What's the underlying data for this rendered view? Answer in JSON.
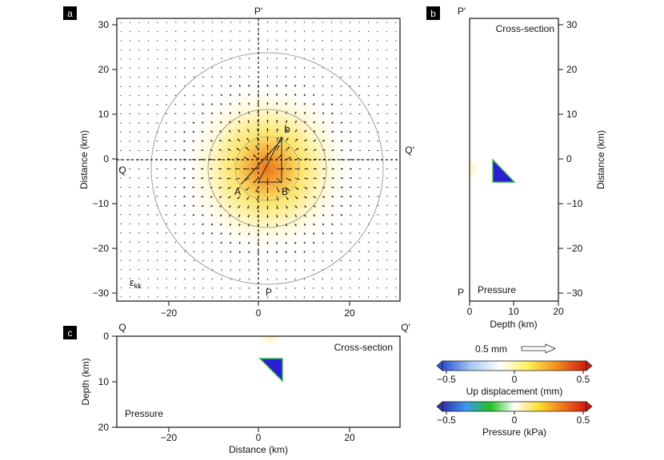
{
  "chart_data": [
    {
      "panel": "a",
      "type": "heatmap",
      "description": "Map view: volumetric strain field with horizontal displacement arrows",
      "field_label": "ε",
      "field_label_sub": "kk",
      "xlim": [
        -31,
        31
      ],
      "ylim": [
        -31,
        31
      ],
      "xticks": [
        -20,
        0,
        20
      ],
      "yticks": [
        -30,
        -20,
        -10,
        0,
        10,
        20,
        30
      ],
      "ylabel": "Distance (km)",
      "grid": false,
      "profile_labels": {
        "p_top": "P'",
        "p_bottom": "P",
        "q_left": "Q",
        "q_right": "Q'"
      },
      "vertex_labels": [
        "A",
        "B",
        "b"
      ],
      "source_center": [
        2,
        -2
      ],
      "ring_radii_km": [
        13,
        26
      ]
    },
    {
      "panel": "b",
      "type": "heatmap",
      "title": "Cross-section",
      "subtitle": "Pressure",
      "xlabel": "Depth (km)",
      "ylabel": "Distance (km)",
      "xlim": [
        0,
        20
      ],
      "ylim": [
        -31,
        31
      ],
      "xticks": [
        0,
        10,
        20
      ],
      "yticks": [
        -30,
        -20,
        -10,
        0,
        10,
        20,
        30
      ],
      "top_label": "P'",
      "bottom_label": "P",
      "triangle": [
        [
          5,
          0
        ],
        [
          5,
          -5
        ],
        [
          10,
          -5
        ]
      ]
    },
    {
      "panel": "c",
      "type": "heatmap",
      "title": "Cross-section",
      "subtitle": "Pressure",
      "xlabel": "Distance (km)",
      "ylabel": "Depth (km)",
      "xlim": [
        -31,
        31
      ],
      "ylim": [
        0,
        20
      ],
      "xticks": [
        -20,
        0,
        20
      ],
      "yticks": [
        0,
        10,
        20
      ],
      "left_label": "Q",
      "right_label": "Q'",
      "triangle": [
        [
          0,
          5
        ],
        [
          5,
          5
        ],
        [
          5,
          10
        ]
      ]
    }
  ],
  "panel_labels": [
    "a",
    "b",
    "c"
  ],
  "arrow_scale": {
    "label": "0.5 mm"
  },
  "colorbars": [
    {
      "label": "Up displacement (mm)",
      "ticks": [
        -0.5,
        0,
        0.5
      ],
      "tick_labels": [
        "−0.5",
        "0",
        "0.5"
      ],
      "colors": [
        "#2a4fd9",
        "#a8c8f0",
        "#ffffff",
        "#ffee55",
        "#f08a1a",
        "#cc1a10"
      ]
    },
    {
      "label": "Pressure (kPa)",
      "ticks": [
        -0.5,
        0,
        0.5
      ],
      "tick_labels": [
        "−0.5",
        "0",
        "0.5"
      ],
      "colors": [
        "#3030b0",
        "#3a9af0",
        "#22c022",
        "#ffffff",
        "#ffe030",
        "#f07818",
        "#d01810"
      ]
    }
  ],
  "tick_label_text": {
    "m30": "−30",
    "m20": "−20",
    "m10": "−10",
    "z": "0",
    "p10": "10",
    "p20": "20",
    "p30": "30"
  }
}
